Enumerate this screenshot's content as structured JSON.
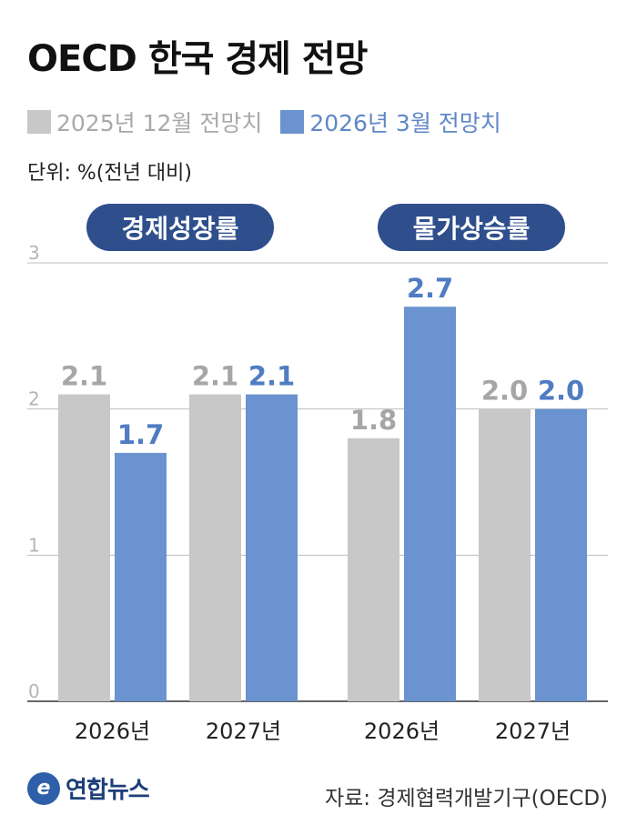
{
  "title": "OECD 한국 경제 전망",
  "legend": [
    {
      "label": "2025년 12월 전망치",
      "color": "#c8c8c8",
      "text_color": "#a9a9a9"
    },
    {
      "label": "2026년 3월 전망치",
      "color": "#6a93d0",
      "text_color": "#5f87c6"
    }
  ],
  "unit": "단위: %(전년 대비)",
  "footer": {
    "logo_mark": "e",
    "logo_text": "연합뉴스",
    "source": "자료: 경제협력개발기구(OECD)"
  },
  "chart_data": [
    {
      "type": "bar",
      "title": "경제성장률",
      "categories": [
        "2026년",
        "2027년"
      ],
      "series": [
        {
          "name": "2025년 12월 전망치",
          "values": [
            2.1,
            2.1
          ]
        },
        {
          "name": "2026년 3월 전망치",
          "values": [
            1.7,
            2.1
          ]
        }
      ],
      "value_labels": [
        [
          "2.1",
          "2.1"
        ],
        [
          "1.7",
          "2.1"
        ]
      ],
      "yticks": [
        "0",
        "1",
        "2",
        "3"
      ],
      "ylim": [
        0,
        3
      ],
      "grid": true
    },
    {
      "type": "bar",
      "title": "물가상승률",
      "categories": [
        "2026년",
        "2027년"
      ],
      "series": [
        {
          "name": "2025년 12월 전망치",
          "values": [
            1.8,
            2.0
          ]
        },
        {
          "name": "2026년 3월 전망치",
          "values": [
            2.7,
            2.0
          ]
        }
      ],
      "value_labels": [
        [
          "1.8",
          "2.0"
        ],
        [
          "2.7",
          "2.0"
        ]
      ],
      "ylim": [
        0,
        3
      ],
      "grid": true
    }
  ]
}
